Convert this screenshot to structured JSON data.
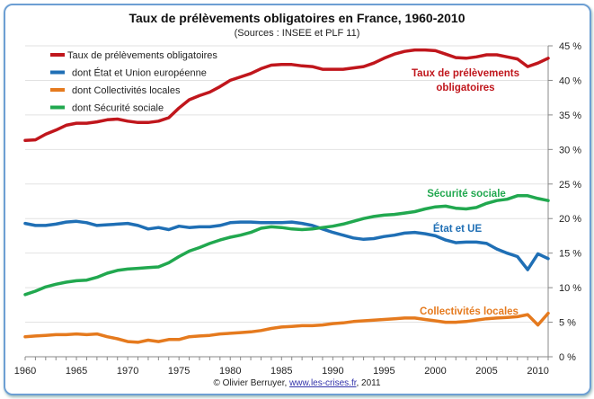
{
  "chart_data": {
    "type": "line",
    "title": "Taux de prélèvements obligatoires en France, 1960-2010",
    "subtitle": "(Sources : INSEE et PLF 11)",
    "xlabel": "",
    "ylabel": "",
    "xlim": [
      1960,
      2011
    ],
    "ylim": [
      0,
      45
    ],
    "x_ticks": [
      "1960",
      "1965",
      "1970",
      "1975",
      "1980",
      "1985",
      "1990",
      "1995",
      "2000",
      "2005",
      "2010"
    ],
    "y_ticks": [
      "0 %",
      "5 %",
      "10 %",
      "15 %",
      "20 %",
      "25 %",
      "30 %",
      "35 %",
      "40 %",
      "45 %"
    ],
    "y_axis_side": "right",
    "grid": true,
    "legend_position": "top-left",
    "x": [
      1960,
      1961,
      1962,
      1963,
      1964,
      1965,
      1966,
      1967,
      1968,
      1969,
      1970,
      1971,
      1972,
      1973,
      1974,
      1975,
      1976,
      1977,
      1978,
      1979,
      1980,
      1981,
      1982,
      1983,
      1984,
      1985,
      1986,
      1987,
      1988,
      1989,
      1990,
      1991,
      1992,
      1993,
      1994,
      1995,
      1996,
      1997,
      1998,
      1999,
      2000,
      2001,
      2002,
      2003,
      2004,
      2005,
      2006,
      2007,
      2008,
      2009,
      2010,
      2011
    ],
    "series": [
      {
        "name": "Taux de prélèvements obligatoires",
        "label": "Taux de prélèvements obligatoires",
        "color": "#c0161c",
        "values": [
          31.3,
          31.4,
          32.2,
          32.8,
          33.5,
          33.8,
          33.8,
          34.0,
          34.3,
          34.4,
          34.1,
          33.9,
          33.9,
          34.1,
          34.6,
          36.0,
          37.2,
          37.8,
          38.3,
          39.1,
          40.0,
          40.5,
          41.0,
          41.7,
          42.2,
          42.3,
          42.3,
          42.1,
          42.0,
          41.6,
          41.6,
          41.6,
          41.8,
          42.0,
          42.5,
          43.2,
          43.8,
          44.2,
          44.4,
          44.4,
          44.3,
          43.8,
          43.3,
          43.2,
          43.4,
          43.7,
          43.7,
          43.4,
          43.1,
          42.0,
          42.5,
          43.2
        ]
      },
      {
        "name": "dont État et Union européenne",
        "label": "État et UE",
        "color": "#1f6fb5",
        "values": [
          19.3,
          19.0,
          19.0,
          19.2,
          19.5,
          19.6,
          19.4,
          19.0,
          19.1,
          19.2,
          19.3,
          19.0,
          18.5,
          18.7,
          18.4,
          18.9,
          18.7,
          18.8,
          18.8,
          19.0,
          19.4,
          19.5,
          19.5,
          19.4,
          19.4,
          19.4,
          19.5,
          19.3,
          19.0,
          18.5,
          18.0,
          17.6,
          17.2,
          17.0,
          17.1,
          17.4,
          17.6,
          17.9,
          18.0,
          17.8,
          17.5,
          16.9,
          16.5,
          16.6,
          16.6,
          16.4,
          15.6,
          15.0,
          14.5,
          12.6,
          14.9,
          14.2
        ]
      },
      {
        "name": "dont Collectivités locales",
        "label": "Collectivités locales",
        "color": "#e57a1e",
        "values": [
          2.9,
          3.0,
          3.1,
          3.2,
          3.2,
          3.3,
          3.2,
          3.3,
          2.9,
          2.6,
          2.2,
          2.1,
          2.4,
          2.2,
          2.5,
          2.5,
          2.9,
          3.0,
          3.1,
          3.3,
          3.4,
          3.5,
          3.6,
          3.8,
          4.1,
          4.3,
          4.4,
          4.5,
          4.5,
          4.6,
          4.8,
          4.9,
          5.1,
          5.2,
          5.3,
          5.4,
          5.5,
          5.6,
          5.6,
          5.4,
          5.2,
          5.0,
          5.0,
          5.1,
          5.3,
          5.5,
          5.6,
          5.7,
          5.8,
          6.1,
          4.6,
          6.3
        ]
      },
      {
        "name": "dont Sécurité sociale",
        "label": "Sécurité sociale",
        "color": "#21a84f",
        "values": [
          9.0,
          9.5,
          10.1,
          10.5,
          10.8,
          11.0,
          11.1,
          11.5,
          12.1,
          12.5,
          12.7,
          12.8,
          12.9,
          13.0,
          13.6,
          14.5,
          15.3,
          15.8,
          16.4,
          16.9,
          17.3,
          17.6,
          18.0,
          18.6,
          18.8,
          18.7,
          18.5,
          18.4,
          18.5,
          18.7,
          18.9,
          19.2,
          19.6,
          20.0,
          20.3,
          20.5,
          20.6,
          20.8,
          21.0,
          21.4,
          21.7,
          21.8,
          21.5,
          21.4,
          21.6,
          22.2,
          22.6,
          22.8,
          23.3,
          23.3,
          22.9,
          22.6
        ]
      }
    ]
  },
  "footer": {
    "prefix": "© Olivier Berruyer, ",
    "link": "www.les-crises.fr",
    "suffix": ",  2011"
  }
}
